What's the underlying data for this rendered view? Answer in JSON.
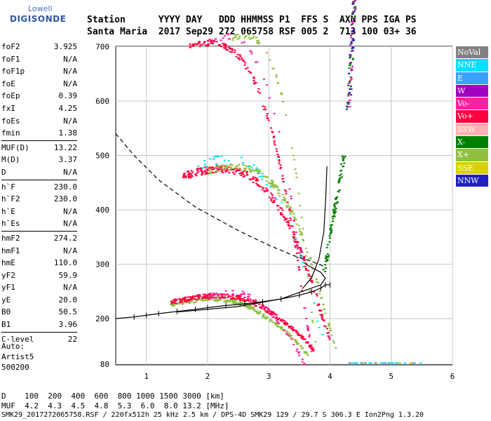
{
  "logo": {
    "line1": "Lowell",
    "line2": "DIGISONDE"
  },
  "header": {
    "line1": "Station      YYYY DAY   DDD HHMMSS P1  FFS S  AXN PPS IGA PS",
    "line2": "Santa Maria  2017 Sep29 272 065758 RSF 005 2  713 100 03+ 36"
  },
  "params_group1": [
    {
      "label": "foF2",
      "value": "3.925"
    },
    {
      "label": "foF1",
      "value": "N/A"
    },
    {
      "label": "foF1p",
      "value": "N/A"
    },
    {
      "label": "foE",
      "value": "N/A"
    },
    {
      "label": "foEp",
      "value": "0.39"
    },
    {
      "label": "fxI",
      "value": "4.25"
    },
    {
      "label": "foEs",
      "value": "N/A"
    },
    {
      "label": "fmin",
      "value": "1.38"
    }
  ],
  "params_group2": [
    {
      "label": "MUF(D)",
      "value": "13.22"
    },
    {
      "label": "M(D)",
      "value": "3.37"
    },
    {
      "label": "D",
      "value": "N/A"
    }
  ],
  "params_group3": [
    {
      "label": "h`F",
      "value": "230.0"
    },
    {
      "label": "h`F2",
      "value": "230.0"
    },
    {
      "label": "h`E",
      "value": "N/A"
    },
    {
      "label": "h`Es",
      "value": "N/A"
    }
  ],
  "params_group4": [
    {
      "label": "hmF2",
      "value": "274.2"
    },
    {
      "label": "hmF1",
      "value": "N/A"
    },
    {
      "label": "hmE",
      "value": "110.0"
    },
    {
      "label": "yF2",
      "value": "59.9"
    },
    {
      "label": "yF1",
      "value": "N/A"
    },
    {
      "label": "yE",
      "value": "20.0"
    },
    {
      "label": "B0",
      "value": "50.5"
    },
    {
      "label": "B1",
      "value": "3.96"
    }
  ],
  "params_group5": [
    {
      "label": "C-level",
      "value": "22"
    }
  ],
  "auto": {
    "line1": "Auto:",
    "line2": "Artist5",
    "line3": "500200"
  },
  "muf_table": {
    "line1": "D    100  200  400  600  800 1000 1500 3000 [km]",
    "line2": "MUF  4.2  4.3  4.5  4.8  5.3  6.0  8.0 13.2 [MHz]"
  },
  "footer": "SMK29_2017272065758.RSF / 220fx512h 25 kHz 2.5 km / DPS-4D SMK29 129 / 29.7 S 306.3 E Ion2Png 1.3.20",
  "legend": [
    {
      "label": "NoVal",
      "bg": "#808080",
      "fg": "#ffffff"
    },
    {
      "label": "NNE",
      "bg": "#00e0ff",
      "fg": "#ffffff"
    },
    {
      "label": "E",
      "bg": "#3aa0ff",
      "fg": "#ffffff"
    },
    {
      "label": "W",
      "bg": "#a000c0",
      "fg": "#ffffff"
    },
    {
      "label": "Vo-",
      "bg": "#ff20a0",
      "fg": "#ffffff"
    },
    {
      "label": "Vo+",
      "bg": "#ff0040",
      "fg": "#ffffff"
    },
    {
      "label": "SSW",
      "bg": "#ffb0b0",
      "fg": "#ffffff"
    },
    {
      "label": "X-",
      "bg": "#008000",
      "fg": "#ffffff"
    },
    {
      "label": "X+",
      "bg": "#90c040",
      "fg": "#ffffff"
    },
    {
      "label": "SSE",
      "bg": "#d8d000",
      "fg": "#ffffff"
    },
    {
      "label": "NNW",
      "bg": "#2020c0",
      "fg": "#ffffff"
    }
  ],
  "chart_data": {
    "type": "scatter",
    "title": "",
    "xlabel": "",
    "ylabel": "",
    "xlim": [
      0.5,
      6.0
    ],
    "ylim": [
      80,
      900
    ],
    "x_ticks": [
      1,
      2,
      3,
      4,
      5,
      6
    ],
    "y_ticks": [
      80,
      200,
      300,
      400,
      500,
      600,
      700,
      800,
      900
    ],
    "grid": true,
    "series": [
      {
        "name": "Vo+",
        "color": "#ff0040",
        "x": [
          1.4,
          1.6,
          1.8,
          2.0,
          2.2,
          2.4,
          2.6,
          2.8,
          3.0,
          3.2,
          3.4,
          3.55,
          3.65,
          3.75,
          3.8,
          3.85
        ],
        "y": [
          228,
          232,
          235,
          238,
          241,
          245,
          249,
          255,
          262,
          272,
          285,
          296,
          310,
          335,
          370,
          420
        ]
      },
      {
        "name": "X-",
        "color": "#008000",
        "x": [
          1.4,
          1.7,
          2.0,
          2.4,
          2.8,
          3.2,
          3.5,
          3.75,
          3.95,
          4.1,
          4.18,
          4.22,
          4.25
        ],
        "y": [
          228,
          232,
          236,
          240,
          246,
          256,
          266,
          282,
          306,
          346,
          400,
          460,
          500
        ]
      },
      {
        "name": "X+",
        "color": "#90c040",
        "x": [
          1.4,
          1.7,
          2.0,
          2.4,
          2.8,
          3.2,
          3.5,
          3.75,
          3.95,
          4.1,
          4.18
        ],
        "y": [
          226,
          230,
          233,
          237,
          243,
          252,
          262,
          278,
          300,
          338,
          380
        ]
      },
      {
        "name": "NNW",
        "color": "#2020c0",
        "x": [
          4.3,
          4.35,
          4.4,
          4.42
        ],
        "y": [
          640,
          700,
          740,
          770
        ]
      }
    ]
  }
}
